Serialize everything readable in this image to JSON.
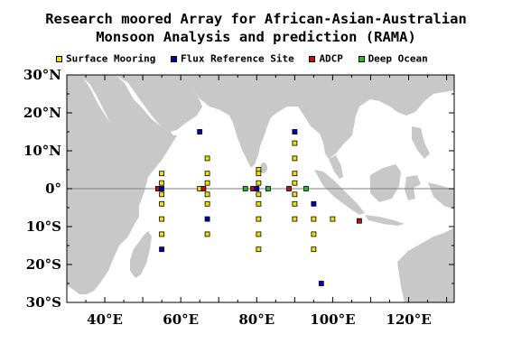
{
  "title": {
    "line1": "Research moored Array for African-Asian-Australian",
    "line2": "Monsoon Analysis and prediction (RAMA)"
  },
  "legend": [
    {
      "label": "Surface Mooring",
      "color": "#f0e000"
    },
    {
      "label": "Flux Reference Site",
      "color": "#0000b0"
    },
    {
      "label": "ADCP",
      "color": "#c01010"
    },
    {
      "label": "Deep Ocean",
      "color": "#20c020"
    }
  ],
  "axes": {
    "lon_range": [
      30,
      132
    ],
    "lat_range": [
      -30,
      30
    ],
    "lat_labels": [
      "30°N",
      "20°N",
      "10°N",
      "0°",
      "10°S",
      "20°S",
      "30°S"
    ],
    "lat_values": [
      30,
      20,
      10,
      0,
      -10,
      -20,
      -30
    ],
    "lon_labels": [
      "40°E",
      "60°E",
      "80°E",
      "100°E",
      "120°E"
    ],
    "lon_values": [
      40,
      60,
      80,
      100,
      120
    ]
  },
  "colors": {
    "land": "#c8c8c8",
    "equator": "#808080"
  },
  "moorings": [
    {
      "type": "surface",
      "lon": 55,
      "lat": 4
    },
    {
      "type": "surface",
      "lon": 55,
      "lat": 1.5
    },
    {
      "type": "surface",
      "lon": 55,
      "lat": -1.5
    },
    {
      "type": "surface",
      "lon": 55,
      "lat": -4
    },
    {
      "type": "surface",
      "lon": 55,
      "lat": -8
    },
    {
      "type": "surface",
      "lon": 55,
      "lat": -12
    },
    {
      "type": "surface",
      "lon": 67,
      "lat": 8
    },
    {
      "type": "surface",
      "lon": 67,
      "lat": 4
    },
    {
      "type": "surface",
      "lon": 67,
      "lat": 1.5
    },
    {
      "type": "surface",
      "lon": 67,
      "lat": -1.5
    },
    {
      "type": "surface",
      "lon": 67,
      "lat": -4
    },
    {
      "type": "surface",
      "lon": 67,
      "lat": -12
    },
    {
      "type": "surface",
      "lon": 65,
      "lat": 0
    },
    {
      "type": "surface",
      "lon": 80.5,
      "lat": 5
    },
    {
      "type": "surface",
      "lon": 80.5,
      "lat": 4
    },
    {
      "type": "surface",
      "lon": 80.5,
      "lat": 1.5
    },
    {
      "type": "surface",
      "lon": 80.5,
      "lat": -1.5
    },
    {
      "type": "surface",
      "lon": 80.5,
      "lat": -4
    },
    {
      "type": "surface",
      "lon": 80.5,
      "lat": -8
    },
    {
      "type": "surface",
      "lon": 80.5,
      "lat": -12
    },
    {
      "type": "surface",
      "lon": 80.5,
      "lat": -16
    },
    {
      "type": "surface",
      "lon": 90,
      "lat": 12
    },
    {
      "type": "surface",
      "lon": 90,
      "lat": 8
    },
    {
      "type": "surface",
      "lon": 90,
      "lat": 4
    },
    {
      "type": "surface",
      "lon": 90,
      "lat": 1.5
    },
    {
      "type": "surface",
      "lon": 90,
      "lat": -1.5
    },
    {
      "type": "surface",
      "lon": 90,
      "lat": -4
    },
    {
      "type": "surface",
      "lon": 90,
      "lat": -8
    },
    {
      "type": "surface",
      "lon": 95,
      "lat": -8
    },
    {
      "type": "surface",
      "lon": 95,
      "lat": -12
    },
    {
      "type": "surface",
      "lon": 95,
      "lat": -16
    },
    {
      "type": "surface",
      "lon": 100,
      "lat": -8
    },
    {
      "type": "flux",
      "lon": 65,
      "lat": 15
    },
    {
      "type": "flux",
      "lon": 90,
      "lat": 15
    },
    {
      "type": "flux",
      "lon": 55,
      "lat": -16
    },
    {
      "type": "flux",
      "lon": 67,
      "lat": -8
    },
    {
      "type": "flux",
      "lon": 95,
      "lat": -4
    },
    {
      "type": "flux",
      "lon": 97,
      "lat": -25
    },
    {
      "type": "flux",
      "lon": 55,
      "lat": 0
    },
    {
      "type": "flux",
      "lon": 80,
      "lat": 0
    },
    {
      "type": "adcp",
      "lon": 54,
      "lat": 0
    },
    {
      "type": "adcp",
      "lon": 66,
      "lat": 0
    },
    {
      "type": "adcp",
      "lon": 79,
      "lat": 0
    },
    {
      "type": "adcp",
      "lon": 88.5,
      "lat": 0
    },
    {
      "type": "adcp",
      "lon": 107,
      "lat": -8.5
    },
    {
      "type": "deep",
      "lon": 77,
      "lat": 0
    },
    {
      "type": "deep",
      "lon": 83,
      "lat": 0
    },
    {
      "type": "deep",
      "lon": 93,
      "lat": 0
    }
  ]
}
